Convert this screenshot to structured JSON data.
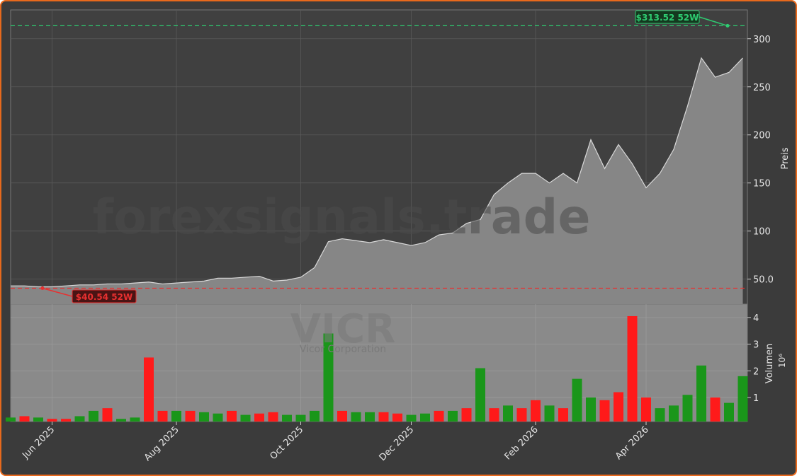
{
  "chart_data": {
    "type": "stock",
    "watermark": "forexsignals.trade",
    "ticker": "VICR",
    "company": "Vicor Corporation",
    "ylabel": "Preis",
    "volume_label": "Volumen",
    "volume_offset": "10⁶",
    "categories": [
      null,
      null,
      null,
      "Jun 2025",
      null,
      null,
      null,
      null,
      null,
      null,
      null,
      null,
      "Aug 2025",
      null,
      null,
      null,
      null,
      null,
      null,
      null,
      null,
      "Oct 2025",
      null,
      null,
      null,
      null,
      null,
      null,
      null,
      "Dec 2025",
      null,
      null,
      null,
      null,
      null,
      null,
      null,
      null,
      "Feb 2026",
      null,
      null,
      null,
      null,
      null,
      null,
      null,
      "Apr 2026",
      null,
      null,
      null,
      null,
      null,
      null,
      null
    ],
    "price": {
      "color": "#d9d9d9",
      "fill": "#868686",
      "values": [
        43,
        43,
        42,
        42,
        43,
        44,
        44,
        45,
        45,
        46,
        47,
        45,
        46,
        47,
        48,
        51,
        51,
        52,
        53,
        48,
        49,
        52,
        62,
        89,
        92,
        90,
        88,
        91,
        88,
        85,
        88,
        96,
        98,
        108,
        112,
        138,
        150,
        160,
        160,
        150,
        160,
        150,
        195,
        165,
        190,
        170,
        145,
        160,
        185,
        230,
        280,
        260,
        265,
        280
      ]
    },
    "volume": {
      "values": [
        0.25,
        0.3,
        0.25,
        0.2,
        0.2,
        0.3,
        0.5,
        0.6,
        0.2,
        0.25,
        2.5,
        0.5,
        0.5,
        0.5,
        0.45,
        0.4,
        0.5,
        0.35,
        0.4,
        0.45,
        0.35,
        0.35,
        0.5,
        3.4,
        0.5,
        0.45,
        0.45,
        0.45,
        0.4,
        0.35,
        0.4,
        0.5,
        0.5,
        0.6,
        2.1,
        0.6,
        0.7,
        0.6,
        0.9,
        0.7,
        0.6,
        1.7,
        1.0,
        0.9,
        1.2,
        4.05,
        1.0,
        0.6,
        0.7,
        1.1,
        2.2,
        1.0,
        0.8,
        1.8
      ],
      "colors": [
        "#1a961a",
        "#ff1a1a",
        "#1a961a",
        "#ff1a1a",
        "#ff1a1a",
        "#1a961a",
        "#1a961a",
        "#ff1a1a",
        "#1a961a",
        "#1a961a",
        "#ff1a1a",
        "#ff1a1a",
        "#1a961a",
        "#ff1a1a",
        "#1a961a",
        "#1a961a",
        "#ff1a1a",
        "#1a961a",
        "#ff1a1a",
        "#ff1a1a",
        "#1a961a",
        "#1a961a",
        "#1a961a",
        "#1a961a",
        "#ff1a1a",
        "#1a961a",
        "#1a961a",
        "#ff1a1a",
        "#ff1a1a",
        "#1a961a",
        "#1a961a",
        "#ff1a1a",
        "#1a961a",
        "#ff1a1a",
        "#1a961a",
        "#ff1a1a",
        "#1a961a",
        "#ff1a1a",
        "#ff1a1a",
        "#1a961a",
        "#ff1a1a",
        "#1a961a",
        "#1a961a",
        "#ff1a1a",
        "#ff1a1a",
        "#ff1a1a",
        "#ff1a1a",
        "#1a961a",
        "#1a961a",
        "#1a961a",
        "#1a961a",
        "#ff1a1a",
        "#1a961a",
        "#1a961a"
      ]
    },
    "ylim": [
      24,
      330
    ],
    "yticks": [
      {
        "value": 50,
        "label": "50.0"
      },
      100,
      150,
      200,
      250,
      300
    ],
    "volume_ylim": [
      0.1,
      4.5
    ],
    "volume_yticks": [
      1,
      2,
      3,
      4
    ],
    "grid": true,
    "high": {
      "value": 313.52,
      "label": "$313.52 52W",
      "color": "#2ecc71"
    },
    "low": {
      "value": 40.54,
      "label": "$40.54 52W",
      "color": "#e83030"
    }
  }
}
